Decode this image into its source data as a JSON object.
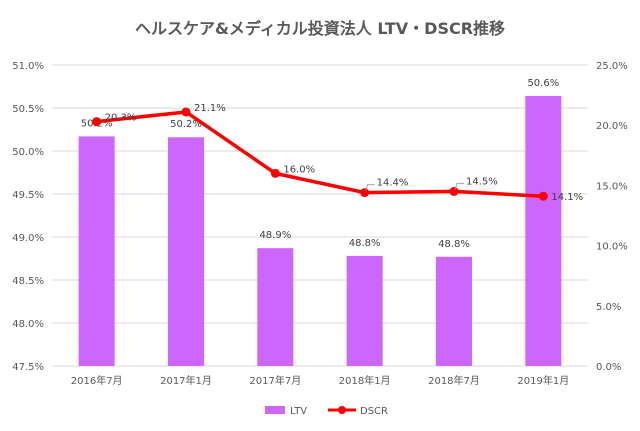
{
  "chart_data": {
    "type": "bar+line",
    "title": "ヘルスケア&メディカル投資法人 LTV・DSCR推移",
    "categories": [
      "2016年7月",
      "2017年1月",
      "2017年7月",
      "2018年1月",
      "2018年7月",
      "2019年1月"
    ],
    "series": [
      {
        "name": "LTV",
        "type": "bar",
        "axis": "left",
        "color": "#CC66FF",
        "values": [
          50.17,
          50.16,
          48.87,
          48.78,
          48.77,
          50.64
        ],
        "labels": [
          "50.2%",
          "50.2%",
          "48.9%",
          "48.8%",
          "48.8%",
          "50.6%"
        ]
      },
      {
        "name": "DSCR",
        "type": "line",
        "axis": "right",
        "color": "#FF0000",
        "values": [
          20.3,
          21.1,
          16.0,
          14.4,
          14.5,
          14.1
        ],
        "labels": [
          "20.3%",
          "21.1%",
          "16.0%",
          "14.4%",
          "14.5%",
          "14.1%"
        ]
      }
    ],
    "y_left": {
      "min": 47.5,
      "max": 51.0,
      "step": 0.5,
      "ticks": [
        "47.5%",
        "48.0%",
        "48.5%",
        "49.0%",
        "49.5%",
        "50.0%",
        "50.5%",
        "51.0%"
      ]
    },
    "y_right": {
      "min": 0,
      "max": 25,
      "step": 5,
      "ticks": [
        "0.0%",
        "5.0%",
        "10.0%",
        "15.0%",
        "20.0%",
        "25.0%"
      ]
    },
    "grid": true,
    "legend": "bottom"
  }
}
